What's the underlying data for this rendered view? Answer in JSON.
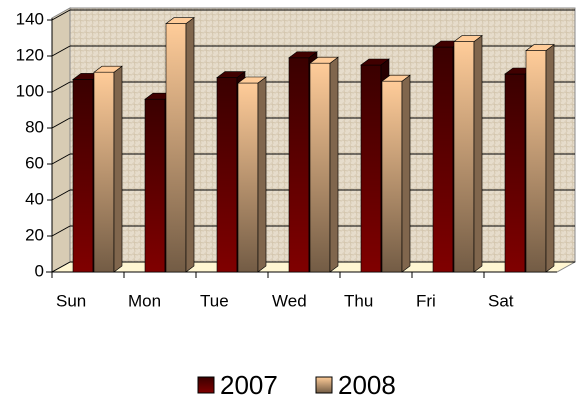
{
  "chart_data": {
    "type": "bar",
    "categories": [
      "Sun",
      "Mon",
      "Tue",
      "Wed",
      "Thu",
      "Fri",
      "Sat"
    ],
    "series": [
      {
        "name": "2007",
        "color": "#800000",
        "values": [
          107,
          96,
          108,
          119,
          115,
          125,
          110
        ]
      },
      {
        "name": "2008",
        "color": "#ffcc99",
        "values": [
          111,
          138,
          105,
          116,
          106,
          128,
          123
        ]
      }
    ],
    "ylim": [
      0,
      140
    ],
    "yticks": [
      0,
      20,
      40,
      60,
      80,
      100,
      120,
      140
    ],
    "grid": true,
    "legend": "bottom"
  }
}
